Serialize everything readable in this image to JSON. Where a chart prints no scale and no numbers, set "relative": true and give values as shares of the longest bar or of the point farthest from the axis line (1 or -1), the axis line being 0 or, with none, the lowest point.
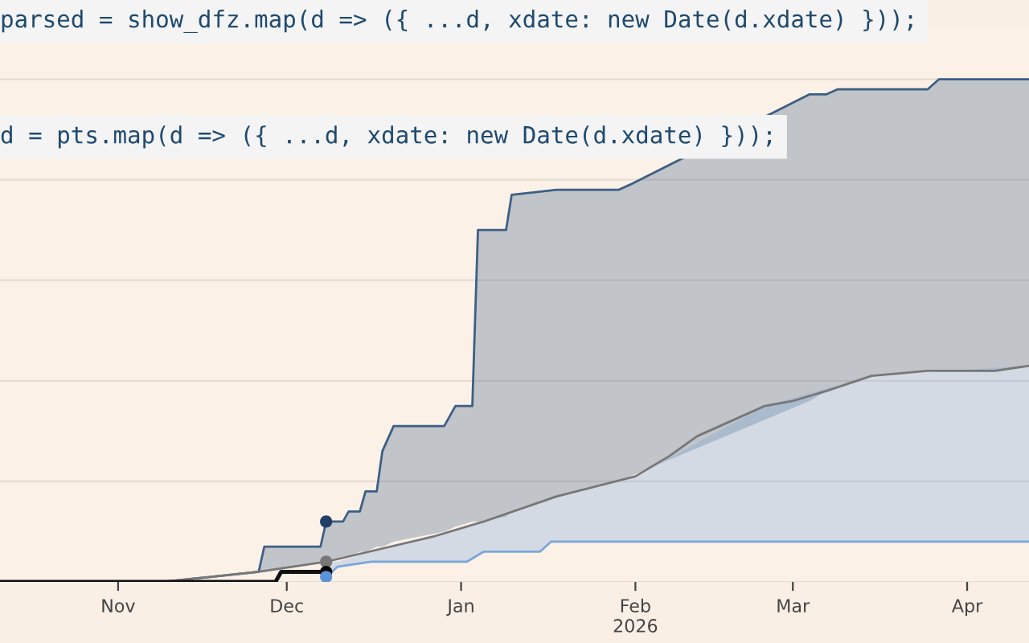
{
  "chart_data": {
    "type": "line",
    "relative": true,
    "grid": "y",
    "xlim": [
      "2025-10-11",
      "2026-04-12"
    ],
    "xticks": [
      {
        "value": "2025-11-01",
        "label": "Nov"
      },
      {
        "value": "2025-12-01",
        "label": "Dec"
      },
      {
        "value": "2026-01-01",
        "label": "Jan"
      },
      {
        "value": "2026-02-01",
        "label": "Feb\n2026"
      },
      {
        "value": "2026-03-01",
        "label": "Mar"
      },
      {
        "value": "2026-04-01",
        "label": "Apr"
      }
    ],
    "tick_labels": "x",
    "annotations": [
      "parsed = show_dfz.map(d => ({ ...d, xdate: new Date(d.xdate) }));",
      "d = pts.map(d => ({ ...d, xdate: new Date(d.xdate) }));"
    ],
    "series": [
      {
        "color": "#3d5f85",
        "x": [
          "2025-10-11",
          "2025-11-09",
          "2025-11-26",
          "2025-11-27",
          "2025-12-07",
          "2025-12-08",
          "2025-12-11",
          "2025-12-12",
          "2025-12-14",
          "2025-12-15",
          "2025-12-17",
          "2025-12-18",
          "2025-12-20",
          "2025-12-29",
          "2025-12-31",
          "2026-01-03",
          "2026-01-04",
          "2026-01-09",
          "2026-01-10",
          "2026-01-18",
          "2026-01-29",
          "2026-01-31",
          "2026-02-01",
          "2026-02-03",
          "2026-02-12",
          "2026-02-24",
          "2026-03-04",
          "2026-03-07",
          "2026-03-09",
          "2026-03-15",
          "2026-03-25",
          "2026-03-27",
          "2026-04-06",
          "2026-04-12"
        ],
        "values": [
          0,
          0,
          0.02,
          0.07,
          0.07,
          0.12,
          0.12,
          0.14,
          0.14,
          0.18,
          0.18,
          0.26,
          0.31,
          0.31,
          0.35,
          0.35,
          0.7,
          0.7,
          0.77,
          0.78,
          0.78,
          0.79,
          null,
          null,
          null,
          null,
          0.97,
          0.97,
          0.98,
          0.98,
          0.98,
          1,
          1,
          1
        ],
        "lower": [
          0,
          0,
          0.02,
          0.02,
          0.04,
          0.04,
          0.05,
          0.05,
          0.06,
          0.06,
          0.07,
          0.07,
          0.08,
          0.1,
          0.11,
          0.12,
          0.12,
          0.13,
          0.14,
          0.17,
          0.2,
          0.21,
          null,
          null,
          null,
          null,
          0.36,
          0.38,
          0.39,
          0.41,
          0.42,
          0.42,
          0.42,
          0.43
        ],
        "upper": [
          0,
          0,
          0.02,
          0.07,
          0.07,
          0.12,
          0.12,
          0.14,
          0.14,
          0.18,
          0.18,
          0.26,
          0.31,
          0.31,
          0.35,
          0.35,
          0.7,
          0.7,
          0.77,
          0.78,
          0.78,
          0.79,
          null,
          null,
          null,
          null,
          0.97,
          0.97,
          0.98,
          0.98,
          0.98,
          1,
          1,
          1
        ]
      },
      {
        "color": "#777777",
        "x": [
          "2025-10-11",
          "2025-11-09",
          "2025-11-26",
          "2025-12-08",
          "2025-12-27",
          "2026-01-05",
          "2026-01-18",
          "2026-02-01",
          "2026-02-07",
          "2026-02-12",
          "2026-02-16",
          "2026-02-24",
          "2026-03-01",
          "2026-03-07",
          "2026-03-15",
          "2026-03-25",
          "2026-04-06",
          "2026-04-12"
        ],
        "values": [
          0,
          0,
          0.02,
          0.04,
          0.09,
          0.12,
          0.17,
          0.21,
          0.25,
          0.29,
          0.31,
          0.35,
          0.36,
          0.38,
          0.41,
          0.42,
          0.42,
          0.43
        ]
      },
      {
        "color": "#7aa6dc",
        "x": [
          "2025-12-08",
          "2025-12-10",
          "2025-12-16",
          "2026-01-02",
          "2026-01-05",
          "2026-01-15",
          "2026-01-17",
          "2026-02-01",
          "2026-02-24",
          "2026-03-15",
          "2026-04-12"
        ],
        "values": [
          0.01,
          0.03,
          0.04,
          0.04,
          0.06,
          0.06,
          0.08,
          0.08,
          0.08,
          0.08,
          0.08
        ],
        "lower": [
          0.01,
          0.03,
          0.04,
          0.04,
          0.06,
          0.06,
          0.08,
          0.08,
          0.08,
          0.08,
          0.08
        ],
        "upper": [
          0.04,
          0.04,
          0.06,
          0.11,
          0.12,
          0.16,
          0.17,
          0.21,
          0.35,
          0.41,
          0.43
        ]
      },
      {
        "color": "#111111",
        "x": [
          "2025-10-11",
          "2025-11-09",
          "2025-11-29",
          "2025-11-30",
          "2025-12-08"
        ],
        "values": [
          0,
          0,
          0,
          0.02,
          0.02
        ]
      },
      {
        "type": "scatter",
        "marker": "circle",
        "x": [
          "2025-12-08",
          "2025-12-08",
          "2025-12-08",
          "2025-12-08"
        ],
        "values": [
          0.12,
          0.04,
          0.02,
          0.01
        ],
        "colors": [
          "#1f3f66",
          "#777777",
          "#000000",
          "#5b93d6"
        ]
      }
    ]
  }
}
